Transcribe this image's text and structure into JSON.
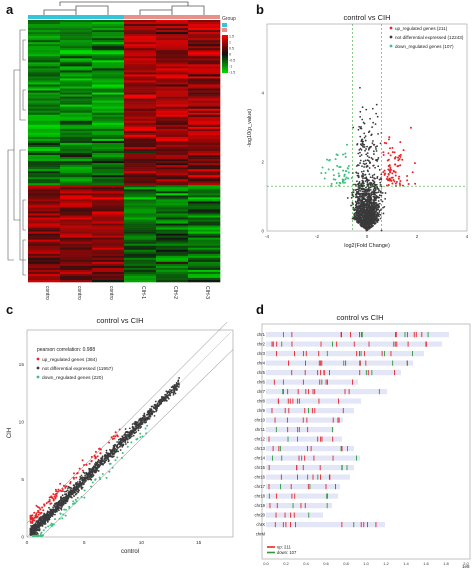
{
  "panel_labels": [
    "a",
    "b",
    "c",
    "d"
  ],
  "chart_data": [
    {
      "panel": "a",
      "type": "heatmap",
      "title": "",
      "columns": [
        "control-1",
        "control-2",
        "control-3",
        "CIH-1",
        "CIH-2",
        "CIH-3"
      ],
      "groups": [
        {
          "label": "control",
          "color": "#35c5d8",
          "columns": [
            "control-1",
            "control-2",
            "control-3"
          ]
        },
        {
          "label": "CIH",
          "color": "#e8908a",
          "columns": [
            "CIH-1",
            "CIH-2",
            "CIH-3"
          ]
        }
      ],
      "legend_title": "Group",
      "color_scale": {
        "min": -1.5,
        "max": 1.5,
        "low": "#00dd00",
        "mid": "#111111",
        "high": "#ff0000",
        "ticks": [
          "1.5",
          "1",
          "0.5",
          "0",
          "-0.5",
          "-1",
          "-1.5"
        ]
      },
      "row_blocks": [
        {
          "rows": 60,
          "pattern": [
            -0.9,
            -0.9,
            -0.9,
            0.9,
            0.9,
            0.9
          ]
        },
        {
          "rows": 22,
          "pattern": [
            -0.6,
            -0.7,
            -0.6,
            0.5,
            0.6,
            0.7
          ]
        },
        {
          "rows": 24,
          "pattern": [
            0.8,
            0.9,
            0.8,
            -0.8,
            -0.9,
            -0.8
          ]
        },
        {
          "rows": 24,
          "pattern": [
            0.7,
            0.6,
            0.7,
            -0.7,
            -0.6,
            -0.7
          ]
        }
      ]
    },
    {
      "panel": "b",
      "type": "scatter",
      "title": "control vs CIH",
      "xlabel": "log2(Fold Change)",
      "ylabel": "-log10(p_value)",
      "xlim": [
        -4,
        4
      ],
      "ylim": [
        0,
        6
      ],
      "xticks": [
        -4,
        -2,
        0,
        2,
        4
      ],
      "yticks": [
        0,
        2,
        4
      ],
      "thresholds": {
        "x": [
          -0.58,
          0.58
        ],
        "y": 1.3
      },
      "legend_position": "top-right",
      "series": [
        {
          "name": "up_regulated genes (211)",
          "color": "#e8262a",
          "count": 211
        },
        {
          "name": "not differential expressed (12243)",
          "color": "#3a3a3a",
          "count": 12243
        },
        {
          "name": "down_regulated genes (107)",
          "color": "#3fbf7f",
          "count": 107
        }
      ]
    },
    {
      "panel": "c",
      "type": "scatter",
      "title": "control vs CIH",
      "xlabel": "control",
      "ylabel": "CIH",
      "xlim": [
        0,
        18
      ],
      "ylim": [
        0,
        18
      ],
      "xticks": [
        0,
        5,
        10,
        15
      ],
      "yticks": [
        0,
        5,
        10,
        15
      ],
      "annotation": "pearson correlation: 0.988",
      "legend_position": "top-left",
      "series": [
        {
          "name": "up_regulated genes (384)",
          "color": "#e8262a",
          "count": 384
        },
        {
          "name": "not differential expressed (11957)",
          "color": "#3a3a3a",
          "count": 11957
        },
        {
          "name": "down_regulated genes (220)",
          "color": "#3fbf7f",
          "count": 220
        }
      ]
    },
    {
      "panel": "d",
      "type": "bar",
      "title": "control vs CIH",
      "xlabel": "",
      "x_unit": "1e8",
      "xlim": [
        0,
        2.0
      ],
      "xticks": [
        "0.0",
        "0.2",
        "0.4",
        "0.6",
        "0.8",
        "1.0",
        "1.2",
        "1.4",
        "1.6",
        "1.8",
        "2.0"
      ],
      "categories": [
        "chr1",
        "chr2",
        "chr3",
        "chr4",
        "chr5",
        "chr6",
        "chr7",
        "chr8",
        "chr9",
        "chr10",
        "chr11",
        "chr12",
        "chr13",
        "chr14",
        "chr15",
        "chr16",
        "chr17",
        "chr18",
        "chr19",
        "chr20",
        "chrX",
        "chrM"
      ],
      "values": [
        1.83,
        1.76,
        1.58,
        1.47,
        1.35,
        0.92,
        1.21,
        0.95,
        0.88,
        0.77,
        0.68,
        0.76,
        0.88,
        0.94,
        0.88,
        0.84,
        0.74,
        0.72,
        0.66,
        0.57,
        1.19,
        0.0
      ],
      "legend_position": "bottom-left",
      "series": [
        {
          "name": "up: 211",
          "color": "#e8262a"
        },
        {
          "name": "down: 107",
          "color": "#2c9a3c"
        }
      ]
    }
  ]
}
